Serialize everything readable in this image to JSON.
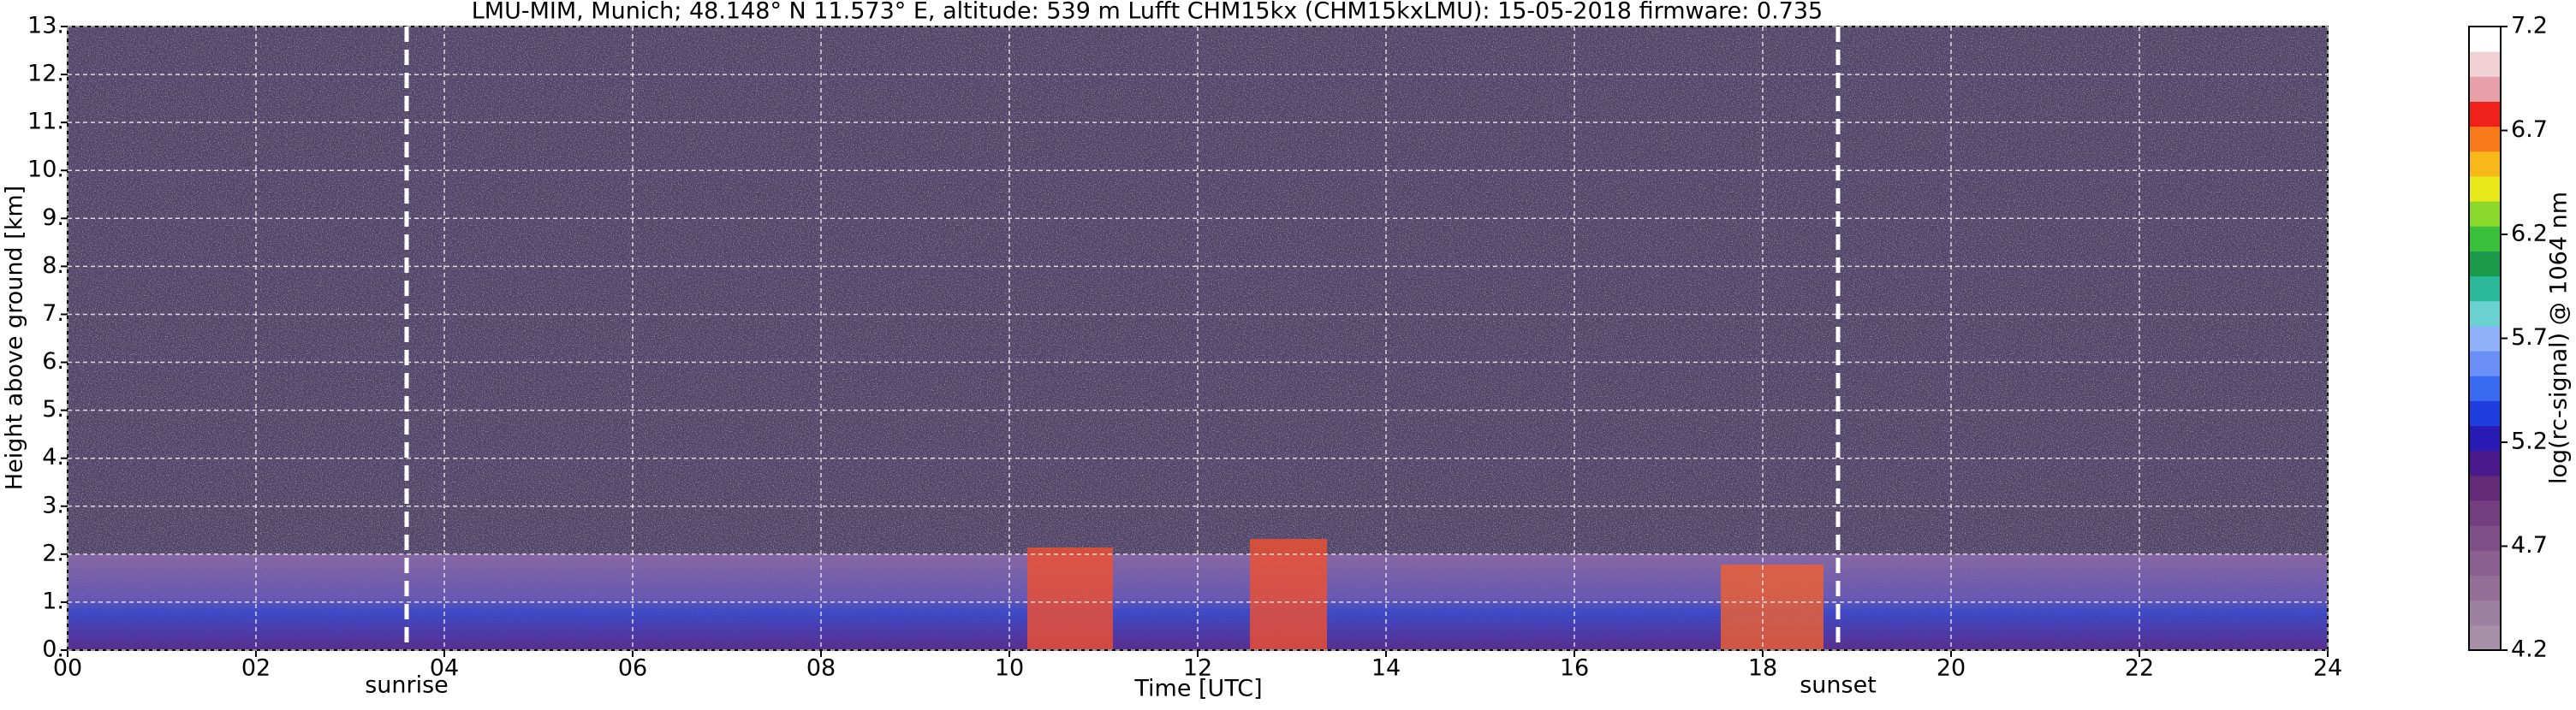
{
  "chart_data": {
    "type": "heatmap",
    "title": "LMU-MIM, Munich; 48.148° N 11.573° E, altitude: 539 m    Lufft CHM15kx (CHM15kxLMU): 15-05-2018    firmware: 0.735",
    "xlabel": "Time [UTC]",
    "ylabel": "Height above ground [km]",
    "xlim": [
      0,
      24
    ],
    "xticks": [
      {
        "value": 0,
        "label": "00"
      },
      {
        "value": 2,
        "label": "02"
      },
      {
        "value": 4,
        "label": "04"
      },
      {
        "value": 6,
        "label": "06"
      },
      {
        "value": 8,
        "label": "08"
      },
      {
        "value": 10,
        "label": "10"
      },
      {
        "value": 12,
        "label": "12"
      },
      {
        "value": 14,
        "label": "14"
      },
      {
        "value": 16,
        "label": "16"
      },
      {
        "value": 18,
        "label": "18"
      },
      {
        "value": 20,
        "label": "20"
      },
      {
        "value": 22,
        "label": "22"
      },
      {
        "value": 24,
        "label": "24"
      }
    ],
    "ylim": [
      0,
      13
    ],
    "yticks": [
      {
        "value": 0,
        "label": "0."
      },
      {
        "value": 1,
        "label": "1."
      },
      {
        "value": 2,
        "label": "2."
      },
      {
        "value": 3,
        "label": "3."
      },
      {
        "value": 4,
        "label": "4."
      },
      {
        "value": 5,
        "label": "5."
      },
      {
        "value": 6,
        "label": "6."
      },
      {
        "value": 7,
        "label": "7."
      },
      {
        "value": 8,
        "label": "8."
      },
      {
        "value": 9,
        "label": "9."
      },
      {
        "value": 10,
        "label": "10."
      },
      {
        "value": 11,
        "label": "11."
      },
      {
        "value": 12,
        "label": "12."
      },
      {
        "value": 13,
        "label": "13."
      }
    ],
    "grid": true,
    "annotations": [
      {
        "text": "sunrise",
        "x": 3.6
      },
      {
        "text": "sunset",
        "x": 18.8
      }
    ],
    "colorbar": {
      "label": "log(rc-signal) @ 1064 nm",
      "lim": [
        4.2,
        7.2
      ],
      "ticks": [
        4.2,
        4.7,
        5.2,
        5.7,
        6.2,
        6.7,
        7.2
      ],
      "colors": [
        "#a88fa8",
        "#9e80a0",
        "#947098",
        "#8a6090",
        "#7f4f88",
        "#733f80",
        "#642c78",
        "#4a1a8c",
        "#2a1ab4",
        "#1f3ee0",
        "#3a6af0",
        "#6a90f8",
        "#90b0fa",
        "#6ad0d0",
        "#2ab89a",
        "#1a9a4a",
        "#3ac03a",
        "#8ad82a",
        "#e8e81a",
        "#f8b81a",
        "#f87a1a",
        "#f0201a",
        "#e8a0a8",
        "#f0d0d4",
        "#ffffff"
      ]
    }
  }
}
